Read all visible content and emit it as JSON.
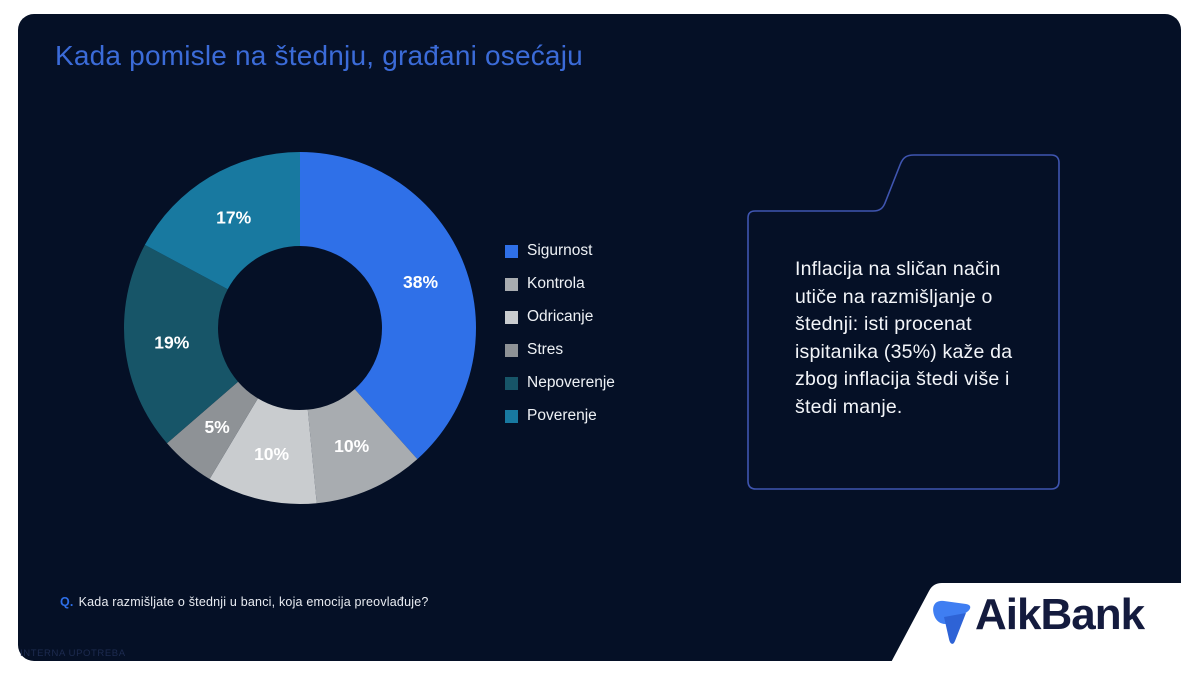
{
  "slide": {
    "title": "Kada pomisle na štednju, građani osećaju",
    "background_color": "#051026",
    "title_color": "#3b6bd8"
  },
  "chart_data": {
    "type": "pie",
    "subtype": "donut",
    "title": "Kada pomisle na štednju, građani osećaju",
    "start_angle_deg": 0,
    "direction": "clockwise",
    "inner_radius_ratio": 0.47,
    "categories": [
      "Sigurnost",
      "Kontrola",
      "Odricanje",
      "Stres",
      "Nepoverenje",
      "Poverenje"
    ],
    "values": [
      38,
      10,
      10,
      5,
      19,
      17
    ],
    "colors": [
      "#2f70e8",
      "#a8acb0",
      "#c9cccf",
      "#8e9296",
      "#175568",
      "#1879a0"
    ],
    "value_suffix": "%",
    "label_color": "#ffffff",
    "legend_position": "right"
  },
  "callout": {
    "text": "Inflacija na sličan način utiče na razmišljanje o štednji: isti procenat ispitanika (35%) kaže da zbog inflacija štedi više i štedi manje.",
    "border_color": "#3f55b0"
  },
  "footer": {
    "question_prefix": "Q.",
    "question_text": "Kada razmišljate o štednji u banci, koja emocija preovlađuje?",
    "watermark": "INTERNA UPOTREBA"
  },
  "logo": {
    "text": "AikBank",
    "text_color": "#141b3e",
    "icon_color_light": "#3f7ef2",
    "icon_color_dark": "#2e63d6",
    "panel_color": "#ffffff"
  }
}
